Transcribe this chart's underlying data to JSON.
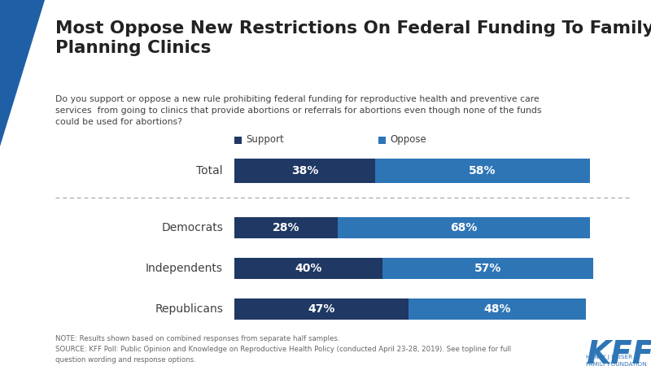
{
  "title": "Most Oppose New Restrictions On Federal Funding To Family\nPlanning Clinics",
  "subtitle": "Do you support or oppose a new rule prohibiting federal funding for reproductive health and preventive care\nservices  from going to clinics that provide abortions or referrals for abortions even though none of the funds\ncould be used for abortions?",
  "categories": [
    "Total",
    "Democrats",
    "Independents",
    "Republicans"
  ],
  "support_values": [
    38,
    28,
    40,
    47
  ],
  "oppose_values": [
    58,
    68,
    57,
    48
  ],
  "support_color": "#1f3864",
  "oppose_color": "#2e75b6",
  "note_text": "NOTE: Results shown based on combined responses from separate half samples.\nSOURCE: KFF Poll: Public Opinion and Knowledge on Reproductive Health Policy (conducted April 23-28, 2019). See topline for full\nquestion wording and response options.",
  "background_color": "#ffffff",
  "text_color": "#404040",
  "title_color": "#222222",
  "accent_color": "#1f5fa6",
  "divider_color": "#aaaaaa",
  "label_color": "#666666"
}
